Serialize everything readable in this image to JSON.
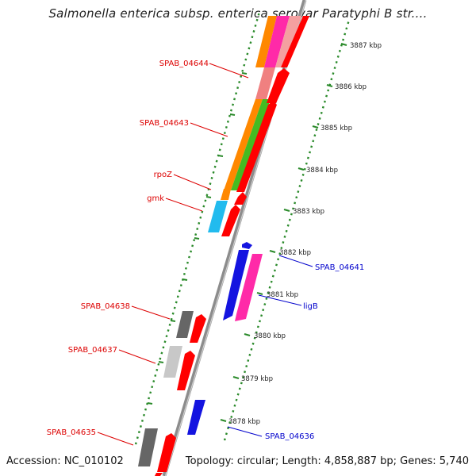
{
  "header": {
    "title": "Salmonella enterica subsp. enterica serovar Paratyphi B str...."
  },
  "footer": {
    "accession": "Accession: NC_010102",
    "summary": "Topology: circular; Length: 4,858,887 bp; Genes: 5,740"
  },
  "scale_ticks": [
    "3887 kbp",
    "3886 kbp",
    "3885 kbp",
    "3884 kbp",
    "3883 kbp",
    "3882 kbp",
    "3881 kbp",
    "3880 kbp",
    "3879 kbp",
    "3878 kbp"
  ],
  "gene_labels_left": [
    "SPAB_04644",
    "SPAB_04643",
    "rpoZ",
    "gmk",
    "SPAB_04638",
    "SPAB_04637",
    "SPAB_04635"
  ],
  "gene_labels_right": [
    "SPAB_04641",
    "ligB",
    "SPAB_04636"
  ],
  "colors": {
    "label_red": "#dd0000",
    "label_blue": "#0000cc",
    "backbone": "#8c8c8c",
    "tick_green": "#2a8a2a",
    "gene_red": "#ff0000",
    "gene_blue": "#1414e0",
    "gene_pink": "#ff2aa8",
    "gene_orange": "#ff8800",
    "gene_green": "#44bb22",
    "gene_cyan": "#22bbee",
    "gene_darkgray": "#666666",
    "gene_lightgray": "#c0c0c0",
    "gene_salmon": "#f08080"
  }
}
